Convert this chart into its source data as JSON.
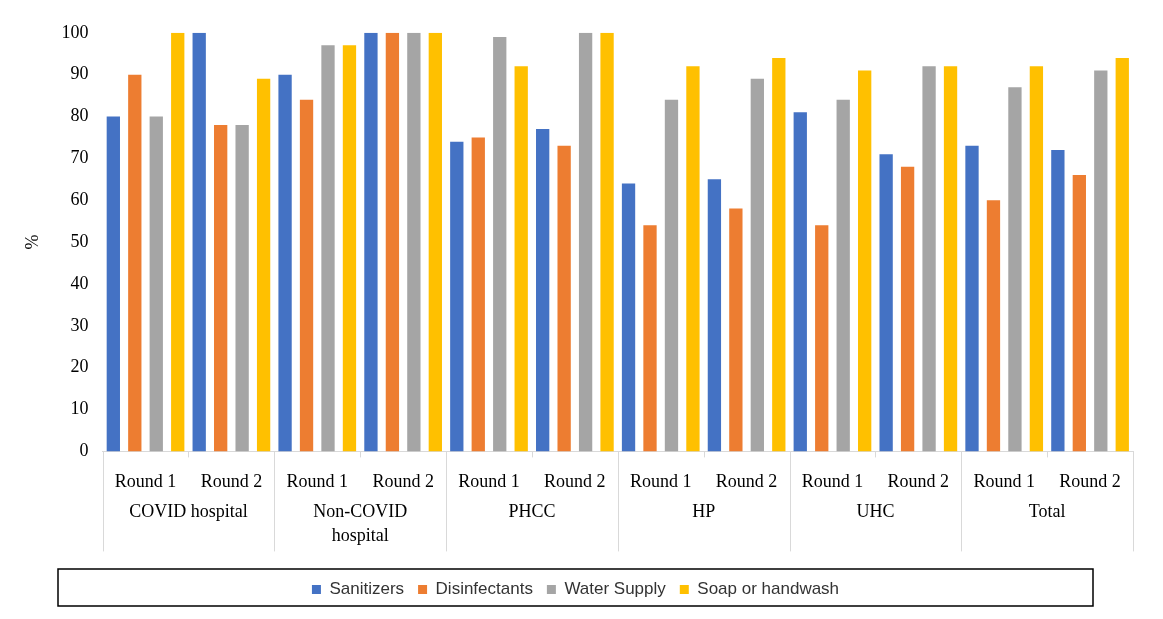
{
  "chart_data": {
    "type": "bar",
    "ylabel": "%",
    "categories": [
      "Round 1",
      "Round 2",
      "Round 1",
      "Round 2",
      "Round 1",
      "Round 2",
      "Round 1",
      "Round 2",
      "Round 1",
      "Round 2",
      "Round 1",
      "Round 2"
    ],
    "annotations": [
      "COVID hospital",
      "Non-COVID hospital",
      "PHCC",
      "HP",
      "UHC",
      "Total"
    ],
    "series": [
      {
        "name": "Sanitizers",
        "color": "#4472c4",
        "values": [
          80,
          100,
          90,
          100,
          74,
          77,
          64,
          65,
          81,
          71,
          73,
          72
        ]
      },
      {
        "name": "Disinfectants",
        "color": "#ed7d31",
        "values": [
          90,
          78,
          84,
          100,
          75,
          73,
          54,
          58,
          54,
          68,
          60,
          66
        ]
      },
      {
        "name": "Water Supply",
        "color": "#a5a5a5",
        "values": [
          80,
          78,
          97,
          100,
          99,
          100,
          84,
          89,
          84,
          92,
          87,
          91
        ]
      },
      {
        "name": "Soap or handwash",
        "color": "#ffc000",
        "values": [
          100,
          89,
          97,
          100,
          92,
          100,
          92,
          94,
          91,
          92,
          92,
          94
        ]
      }
    ],
    "ylim": [
      0,
      100
    ],
    "yticks": [
      0,
      10,
      20,
      30,
      40,
      50,
      60,
      70,
      80,
      90,
      100
    ],
    "legend": "bottom",
    "grid": false
  }
}
